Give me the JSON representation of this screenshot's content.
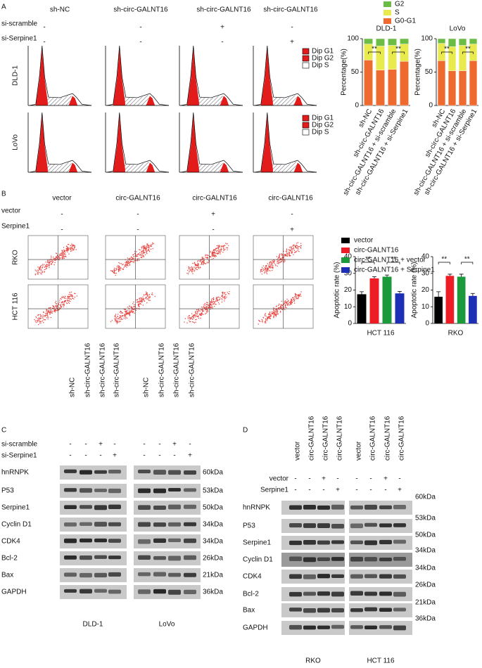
{
  "panel_labels": [
    "A",
    "B",
    "C",
    "D"
  ],
  "panel_a": {
    "columns": [
      "sh-NC",
      "sh-circ-GALNT16",
      "sh-circ-GALNT16",
      "sh-circ-GALNT16"
    ],
    "treatments": [
      {
        "name": "si-scramble",
        "signs": [
          "-",
          "-",
          "+",
          "-"
        ]
      },
      {
        "name": "si-Serpine1",
        "signs": [
          "-",
          "-",
          "-",
          "+"
        ]
      }
    ],
    "rows": [
      "DLD-1",
      "LoVo"
    ],
    "legend": [
      "Dip G1",
      "Dip G2",
      "Dip S"
    ]
  },
  "panel_b": {
    "columns": [
      "vector",
      "circ-GALNT16",
      "circ-GALNT16",
      "circ-GALNT16"
    ],
    "treatments": [
      {
        "name": "vector",
        "signs": [
          "-",
          "-",
          "+",
          "-"
        ]
      },
      {
        "name": "Serpine1",
        "signs": [
          "-",
          "-",
          "-",
          "+"
        ]
      }
    ],
    "rows": [
      "RKO",
      "HCT 116"
    ]
  },
  "chart_data": [
    {
      "type": "stacked_bar",
      "title": "DLD-1",
      "ylabel": "Percentage(%)",
      "categories": [
        "sh-NC",
        "sh-circ-GALNT16",
        "sh-circ-GALNT16 + si-scramble",
        "sh-circ-GALNT16 + si-Serpine1"
      ],
      "series": [
        {
          "name": "G0-G1",
          "color": "#ee6a2f",
          "values": [
            68,
            53,
            54,
            66
          ]
        },
        {
          "name": "S",
          "color": "#e9ea4e",
          "values": [
            24,
            36,
            36,
            26
          ]
        },
        {
          "name": "G2",
          "color": "#6cbd45",
          "values": [
            8,
            11,
            10,
            8
          ]
        }
      ],
      "ylim": [
        0,
        100
      ],
      "yticks": [
        0,
        50,
        100
      ],
      "significance": [
        "**",
        "**"
      ]
    },
    {
      "type": "stacked_bar",
      "title": "LoVo",
      "ylabel": "Percentage(%)",
      "categories": [
        "sh-NC",
        "sh-circ-GALNT16",
        "sh-circ-GALNT16 + si-scramble",
        "sh-circ-GALNT16 + si-Serpine1"
      ],
      "series": [
        {
          "color": "#ee6a2f",
          "values": [
            67,
            52,
            52,
            67
          ]
        },
        {
          "color": "#e9ea4e",
          "values": [
            26,
            36,
            38,
            25
          ]
        },
        {
          "color": "#6cbd45",
          "values": [
            7,
            12,
            10,
            8
          ]
        }
      ],
      "ylim": [
        0,
        100
      ],
      "yticks": [
        0,
        50,
        100
      ],
      "significance": [
        "**",
        "**"
      ]
    },
    {
      "type": "bar",
      "ylabel": "Apoptotic rate (%)",
      "xlabel": "HCT 116",
      "series": [
        {
          "name": "vector",
          "color": "#000000",
          "values": [
            17.5
          ],
          "errors": [
            1.5
          ]
        },
        {
          "name": "circ-GALNT16",
          "color": "#ee1c24",
          "values": [
            27
          ],
          "errors": [
            1
          ]
        },
        {
          "name": "circ-GALNT16 + vector",
          "color": "#1a9a3a",
          "values": [
            28
          ],
          "errors": [
            1
          ]
        },
        {
          "name": "circ-GALNT16 + Serpine1",
          "color": "#1c2fb5",
          "values": [
            18
          ],
          "errors": [
            1.2
          ]
        }
      ],
      "ylim": [
        0,
        40
      ],
      "yticks": [
        0,
        10,
        20,
        30,
        40
      ],
      "significance": [
        "**",
        "**"
      ]
    },
    {
      "type": "bar",
      "ylabel": "Apoptotic rate (%)",
      "xlabel": "RKO",
      "series": [
        {
          "color": "#000000",
          "values": [
            16
          ],
          "errors": [
            3
          ]
        },
        {
          "color": "#ee1c24",
          "values": [
            28.5
          ],
          "errors": [
            1
          ]
        },
        {
          "color": "#1a9a3a",
          "values": [
            28
          ],
          "errors": [
            1.5
          ]
        },
        {
          "color": "#1c2fb5",
          "values": [
            16.5
          ],
          "errors": [
            1.5
          ]
        }
      ],
      "ylim": [
        0,
        40
      ],
      "yticks": [
        0,
        10,
        20,
        30,
        40
      ],
      "significance": [
        "**",
        "**"
      ]
    }
  ],
  "panel_c": {
    "columns": [
      "sh-NC",
      "sh-circ-GALNT16",
      "sh-circ-GALNT16",
      "sh-circ-GALNT16",
      "sh-NC",
      "sh-circ-GALNT16",
      "sh-circ-GALNT16",
      "sh-circ-GALNT16"
    ],
    "treatments": [
      {
        "name": "si-scramble",
        "signs": [
          "-",
          "-",
          "+",
          "-",
          "-",
          "-",
          "+",
          "-"
        ]
      },
      {
        "name": "si-Serpine1",
        "signs": [
          "-",
          "-",
          "-",
          "+",
          "-",
          "-",
          "-",
          "+"
        ]
      }
    ],
    "proteins": [
      "hnRNPK",
      "P53",
      "Serpine1",
      "Cyclin D1",
      "CDK4",
      "Bcl-2",
      "Bax",
      "GAPDH"
    ],
    "kda": [
      "60kDa",
      "53kDa",
      "50kDa",
      "34kDa",
      "34kDa",
      "26kDa",
      "21kDa",
      "36kDa"
    ],
    "groups": [
      "DLD-1",
      "LoVo"
    ]
  },
  "panel_d": {
    "columns": [
      "vector",
      "circ-GALNT16",
      "circ-GALNT16",
      "circ-GALNT16",
      "vector",
      "circ-GALNT16",
      "circ-GALNT16",
      "circ-GALNT16"
    ],
    "treatments": [
      {
        "name": "vector",
        "signs": [
          "-",
          "-",
          "+",
          "-",
          "-",
          "-",
          "+",
          "-"
        ]
      },
      {
        "name": "Serpine1",
        "signs": [
          "-",
          "-",
          "-",
          "+",
          "-",
          "-",
          "-",
          "+"
        ]
      }
    ],
    "proteins": [
      "hnRNPK",
      "P53",
      "Serpine1",
      "Cyclin D1",
      "CDK4",
      "Bcl-2",
      "Bax",
      "GAPDH"
    ],
    "kda": [
      "60kDa",
      "53kDa",
      "50kDa",
      "34kDa",
      "34kDa",
      "26kDa",
      "21kDa",
      "36kDa"
    ],
    "groups": [
      "RKO",
      "HCT 116"
    ]
  }
}
